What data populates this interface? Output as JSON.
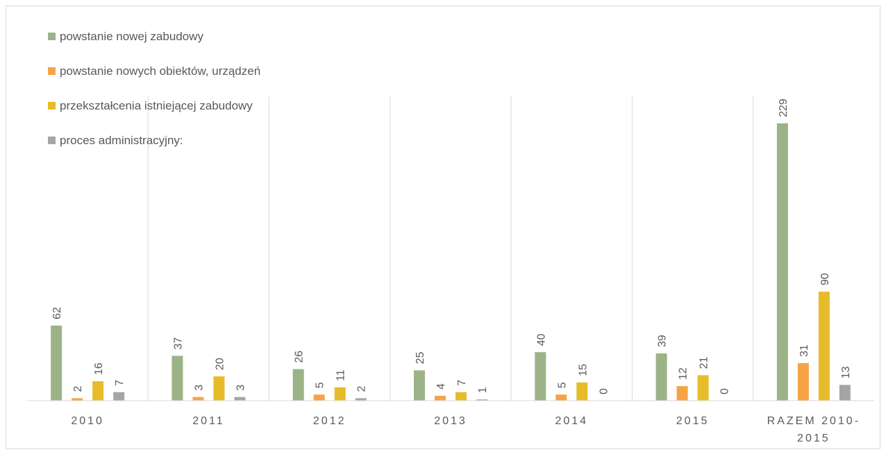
{
  "chart_data": {
    "type": "bar",
    "title": "",
    "xlabel": "",
    "ylabel": "",
    "categories": [
      [
        "2010"
      ],
      [
        "2011"
      ],
      [
        "2012"
      ],
      [
        "2013"
      ],
      [
        "2014"
      ],
      [
        "2015"
      ],
      [
        "RAZEM 2010-",
        "2015"
      ]
    ],
    "series": [
      {
        "name": "powstanie nowej zabudowy",
        "color": "#9bb386",
        "values": [
          62,
          37,
          26,
          25,
          40,
          39,
          229
        ]
      },
      {
        "name": "powstanie nowych obiektów, urządzeń",
        "color": "#f4a447",
        "values": [
          2,
          3,
          5,
          4,
          5,
          12,
          31
        ]
      },
      {
        "name": "przekształcenia istniejącej zabudowy",
        "color": "#e8bb2a",
        "values": [
          16,
          20,
          11,
          7,
          15,
          21,
          90
        ]
      },
      {
        "name": "proces administracyjny:",
        "color": "#a5a5a5",
        "values": [
          7,
          3,
          2,
          1,
          0,
          0,
          13
        ]
      }
    ],
    "ylim": [
      0,
      240
    ],
    "grid": "vertical category separators",
    "legend_position": "top-left",
    "data_labels": true
  }
}
